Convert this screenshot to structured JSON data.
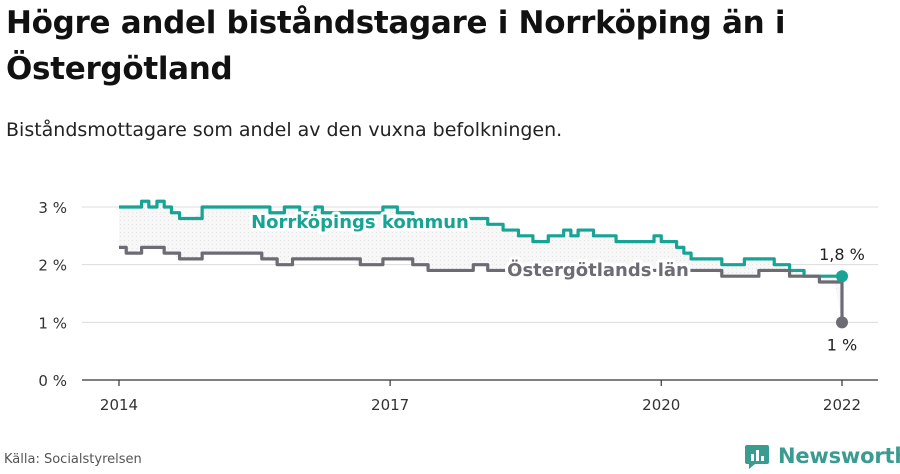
{
  "title": "Högre andel biståndstagare i Norrköping än i Östergötland",
  "subtitle": "Biståndsmottagare som andel av den vuxna befolkningen.",
  "source": "Källa: Socialstyrelsen",
  "brand": {
    "name": "Newsworthy",
    "logo_icon": "newsworthy-logo-icon",
    "color": "#3a9b91"
  },
  "chart_data": {
    "type": "line",
    "title": "Högre andel biståndstagare i Norrköping än i Östergötland",
    "subtitle": "Biståndsmottagare som andel av den vuxna befolkningen.",
    "xlabel": "",
    "ylabel": "",
    "x_ticks": [
      2014,
      2017,
      2020,
      2022
    ],
    "y_ticks": [
      0,
      1,
      2,
      3
    ],
    "y_tick_labels": [
      "0 %",
      "1 %",
      "2 %",
      "3 %"
    ],
    "xlim": [
      2014,
      2022
    ],
    "ylim": [
      0,
      3.2
    ],
    "grid": true,
    "legend": "inline labels",
    "series": [
      {
        "name": "Norrköpings kommun",
        "color": "#18a495",
        "end_label": "1,8 %",
        "x": [
          2014.0,
          2014.17,
          2014.25,
          2014.33,
          2014.42,
          2014.5,
          2014.58,
          2014.67,
          2014.75,
          2014.83,
          2014.92,
          2015.0,
          2015.08,
          2015.17,
          2015.25,
          2015.33,
          2015.42,
          2015.5,
          2015.58,
          2015.67,
          2015.75,
          2015.83,
          2015.92,
          2016.0,
          2016.08,
          2016.17,
          2016.25,
          2016.33,
          2016.42,
          2016.5,
          2016.58,
          2016.67,
          2016.75,
          2016.83,
          2016.92,
          2017.0,
          2017.08,
          2017.17,
          2017.25,
          2017.33,
          2017.42,
          2017.5,
          2017.58,
          2017.67,
          2017.75,
          2017.83,
          2017.92,
          2018.0,
          2018.08,
          2018.17,
          2018.25,
          2018.33,
          2018.42,
          2018.5,
          2018.58,
          2018.67,
          2018.75,
          2018.83,
          2018.92,
          2019.0,
          2019.08,
          2019.17,
          2019.25,
          2019.33,
          2019.42,
          2019.5,
          2019.58,
          2019.67,
          2019.75,
          2019.83,
          2019.92,
          2020.0,
          2020.08,
          2020.17,
          2020.25,
          2020.33,
          2020.42,
          2020.5,
          2020.58,
          2020.67,
          2020.75,
          2020.83,
          2020.92,
          2021.0,
          2021.08,
          2021.17,
          2021.25,
          2021.33,
          2021.42,
          2021.5,
          2021.58,
          2021.67,
          2021.75,
          2021.83,
          2021.92,
          2022.0
        ],
        "values": [
          3.0,
          3.0,
          3.1,
          3.0,
          3.1,
          3.0,
          2.9,
          2.8,
          2.8,
          2.8,
          3.0,
          3.0,
          3.0,
          3.0,
          3.0,
          3.0,
          3.0,
          3.0,
          3.0,
          2.9,
          2.9,
          3.0,
          3.0,
          2.9,
          2.9,
          3.0,
          2.9,
          2.9,
          2.9,
          2.9,
          2.9,
          2.9,
          2.9,
          2.9,
          3.0,
          3.0,
          2.9,
          2.9,
          2.8,
          2.8,
          2.8,
          2.8,
          2.8,
          2.8,
          2.8,
          2.8,
          2.8,
          2.8,
          2.7,
          2.7,
          2.6,
          2.6,
          2.5,
          2.5,
          2.4,
          2.4,
          2.5,
          2.5,
          2.6,
          2.5,
          2.6,
          2.6,
          2.5,
          2.5,
          2.5,
          2.4,
          2.4,
          2.4,
          2.4,
          2.4,
          2.5,
          2.4,
          2.4,
          2.3,
          2.2,
          2.1,
          2.1,
          2.1,
          2.1,
          2.0,
          2.0,
          2.0,
          2.1,
          2.1,
          2.1,
          2.1,
          2.0,
          2.0,
          1.9,
          1.9,
          1.8,
          1.8,
          1.8,
          1.8,
          1.8,
          1.8
        ]
      },
      {
        "name": "Östergötlands län",
        "color": "#6d6b73",
        "end_label": "1 %",
        "x": [
          2014.0,
          2014.08,
          2014.17,
          2014.25,
          2014.33,
          2014.42,
          2014.5,
          2014.58,
          2014.67,
          2014.75,
          2014.83,
          2014.92,
          2015.0,
          2015.08,
          2015.17,
          2015.25,
          2015.33,
          2015.42,
          2015.5,
          2015.58,
          2015.67,
          2015.75,
          2015.83,
          2015.92,
          2016.0,
          2016.08,
          2016.17,
          2016.25,
          2016.33,
          2016.42,
          2016.5,
          2016.58,
          2016.67,
          2016.75,
          2016.83,
          2016.92,
          2017.0,
          2017.08,
          2017.17,
          2017.25,
          2017.33,
          2017.42,
          2017.5,
          2017.58,
          2017.67,
          2017.75,
          2017.83,
          2017.92,
          2018.0,
          2018.08,
          2018.17,
          2018.25,
          2018.33,
          2018.42,
          2018.5,
          2018.58,
          2018.67,
          2018.75,
          2018.83,
          2018.92,
          2019.0,
          2019.08,
          2019.17,
          2019.25,
          2019.33,
          2019.42,
          2019.5,
          2019.58,
          2019.67,
          2019.75,
          2019.83,
          2019.92,
          2020.0,
          2020.08,
          2020.17,
          2020.25,
          2020.33,
          2020.42,
          2020.5,
          2020.58,
          2020.67,
          2020.75,
          2020.83,
          2020.92,
          2021.0,
          2021.08,
          2021.17,
          2021.25,
          2021.33,
          2021.42,
          2021.5,
          2021.58,
          2021.67,
          2021.75,
          2021.83,
          2021.92,
          2022.0
        ],
        "values": [
          2.3,
          2.2,
          2.2,
          2.3,
          2.3,
          2.3,
          2.2,
          2.2,
          2.1,
          2.1,
          2.1,
          2.2,
          2.2,
          2.2,
          2.2,
          2.2,
          2.2,
          2.2,
          2.2,
          2.1,
          2.1,
          2.0,
          2.0,
          2.1,
          2.1,
          2.1,
          2.1,
          2.1,
          2.1,
          2.1,
          2.1,
          2.1,
          2.0,
          2.0,
          2.0,
          2.1,
          2.1,
          2.1,
          2.1,
          2.0,
          2.0,
          1.9,
          1.9,
          1.9,
          1.9,
          1.9,
          1.9,
          2.0,
          2.0,
          1.9,
          1.9,
          1.9,
          1.9,
          1.9,
          1.9,
          1.9,
          1.9,
          1.9,
          1.9,
          1.9,
          1.9,
          1.9,
          1.9,
          1.9,
          1.9,
          1.9,
          1.9,
          1.9,
          1.9,
          1.9,
          1.9,
          1.9,
          1.9,
          1.9,
          1.9,
          1.9,
          1.9,
          1.9,
          1.9,
          1.9,
          1.8,
          1.8,
          1.8,
          1.8,
          1.8,
          1.9,
          1.9,
          1.9,
          1.9,
          1.8,
          1.8,
          1.8,
          1.8,
          1.7,
          1.7,
          1.7,
          1.0
        ]
      }
    ]
  }
}
